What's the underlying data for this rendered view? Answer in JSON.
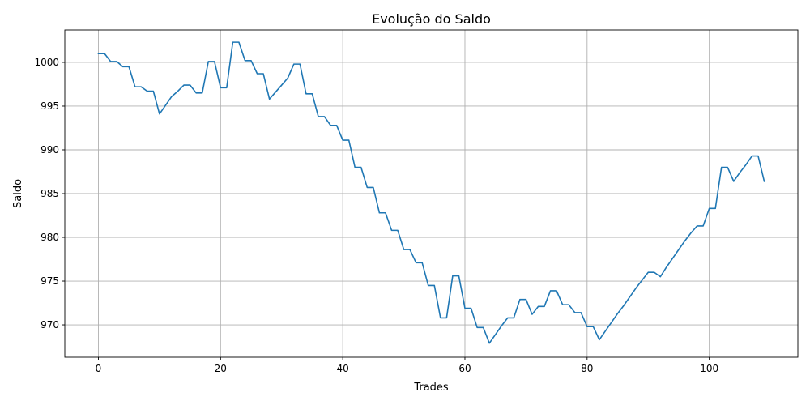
{
  "chart_data": {
    "type": "line",
    "title": "Evolução do Saldo",
    "xlabel": "Trades",
    "ylabel": "Saldo",
    "xlim": [
      -5.5,
      114.5
    ],
    "ylim": [
      966.3,
      1003.7
    ],
    "xticks": [
      0,
      20,
      40,
      60,
      80,
      100
    ],
    "yticks": [
      970,
      975,
      980,
      985,
      990,
      995,
      1000
    ],
    "grid": true,
    "color": "#1f77b4",
    "series": [
      {
        "x": [
          0,
          1,
          2,
          3,
          4,
          5,
          6,
          7,
          8,
          9,
          10,
          11,
          12,
          13,
          14,
          15,
          16,
          17,
          18,
          19,
          20,
          21,
          22,
          23,
          24,
          25,
          26,
          27,
          28,
          29,
          30,
          31,
          32,
          33,
          34,
          35,
          36,
          37,
          38,
          39,
          40,
          41,
          42,
          43,
          44,
          45,
          46,
          47,
          48,
          49,
          50,
          51,
          52,
          53,
          54,
          55,
          56,
          57,
          58,
          59,
          60,
          61,
          62,
          63,
          64,
          65,
          66,
          67,
          68,
          69,
          70,
          71,
          72,
          73,
          74,
          75,
          76,
          77,
          78,
          79,
          80,
          81,
          82,
          83,
          84,
          85,
          86,
          87,
          88,
          89,
          90,
          91,
          92,
          93,
          94,
          95,
          96,
          97,
          98,
          99,
          100,
          101,
          102,
          103,
          104,
          105,
          106,
          107,
          108,
          109
        ],
        "y": [
          1001.0,
          1001.0,
          1000.1,
          1000.1,
          999.5,
          999.5,
          997.2,
          997.2,
          996.7,
          996.7,
          994.1,
          995.1,
          996.1,
          996.7,
          997.4,
          997.4,
          996.5,
          996.5,
          1000.1,
          1000.1,
          997.1,
          997.1,
          1002.3,
          1002.3,
          1000.2,
          1000.2,
          998.7,
          998.7,
          995.8,
          996.6,
          997.4,
          998.2,
          999.8,
          999.8,
          996.4,
          996.4,
          993.8,
          993.8,
          992.8,
          992.8,
          991.1,
          991.1,
          988.0,
          988.0,
          985.7,
          985.7,
          982.8,
          982.8,
          980.8,
          980.8,
          978.6,
          978.6,
          977.1,
          977.1,
          974.5,
          974.5,
          970.8,
          970.8,
          975.6,
          975.6,
          971.9,
          971.9,
          969.7,
          969.7,
          967.9,
          968.9,
          969.9,
          970.8,
          970.8,
          972.9,
          972.9,
          971.2,
          972.1,
          972.1,
          973.9,
          973.9,
          972.3,
          972.3,
          971.4,
          971.4,
          969.8,
          969.8,
          968.3,
          969.3,
          970.3,
          971.3,
          972.2,
          973.2,
          974.2,
          975.1,
          976.0,
          976.0,
          975.5,
          976.6,
          977.6,
          978.6,
          979.6,
          980.5,
          981.3,
          981.3,
          983.3,
          983.3,
          988.0,
          988.0,
          986.4,
          987.4,
          988.3,
          989.3,
          989.3,
          986.4
        ]
      }
    ]
  }
}
